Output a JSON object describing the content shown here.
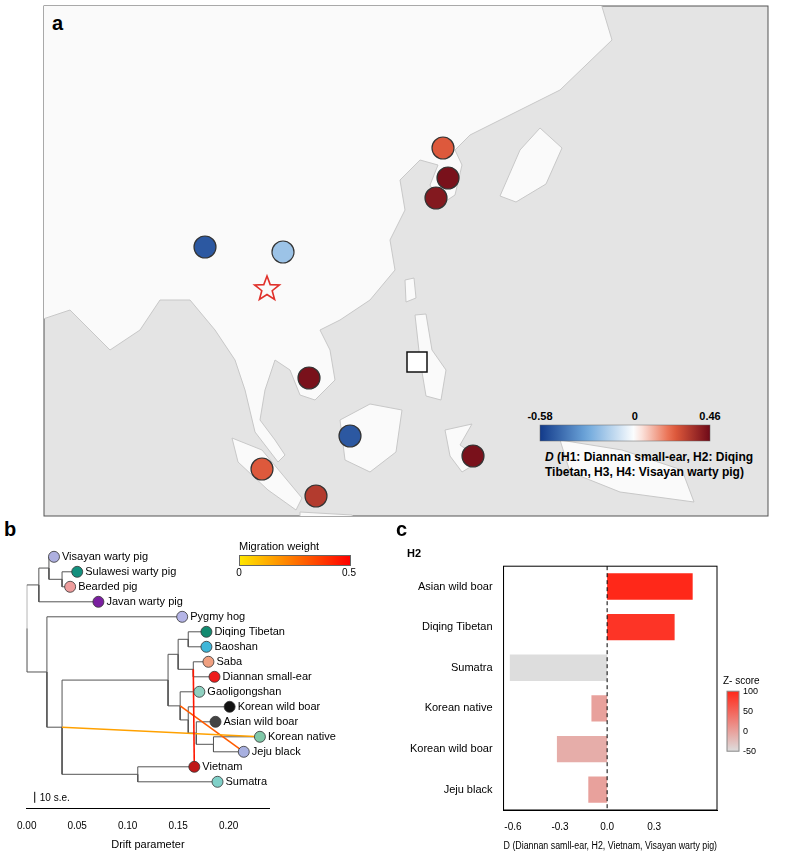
{
  "map": {
    "panel": "a",
    "type": "map",
    "D_values": [
      0.25,
      0.44,
      0.42,
      -0.5,
      -0.2,
      0.44,
      0.25,
      -0.5,
      0.33,
      0.44
    ],
    "colorbar": {
      "title": "D (H1: Diannan small-ear, H2: Diqing Tibetan, H3, H4: Visayan warty pig)",
      "range": [
        -0.58,
        0.46
      ],
      "ticks": [
        -0.58,
        0,
        0.46
      ]
    }
  },
  "chart_data": [
    {
      "panel": "b",
      "type": "tree",
      "x_label": "Drift parameter",
      "xlim": [
        0,
        0.24
      ],
      "xticks": [
        {
          "value": 0,
          "label": "0.00"
        },
        {
          "value": 0.05,
          "label": "0.05"
        },
        {
          "value": 0.1,
          "label": "0.10"
        },
        {
          "value": 0.15,
          "label": "0.15"
        },
        {
          "value": 0.2,
          "label": "0.20"
        }
      ],
      "nodes": [
        {
          "name": "Visayan warty pig",
          "color": "#aeb0e0",
          "drift": 0.027
        },
        {
          "name": "Sulawesi warty pig",
          "color": "#14907e",
          "drift": 0.05
        },
        {
          "name": "Bearded pig",
          "color": "#ee9d9d",
          "drift": 0.043
        },
        {
          "name": "Javan warty pig",
          "color": "#7a1fa0",
          "drift": 0.071
        },
        {
          "name": "Pygmy hog",
          "color": "#b4b4e6",
          "drift": 0.154
        },
        {
          "name": "Diqing Tibetan",
          "color": "#138a70",
          "drift": 0.178
        },
        {
          "name": "Baoshan",
          "color": "#3fb6d8",
          "drift": 0.178
        },
        {
          "name": "Saba",
          "color": "#f0a080",
          "drift": 0.18
        },
        {
          "name": "Diannan small-ear",
          "color": "#ee1c1c",
          "drift": 0.186
        },
        {
          "name": "Gaoligongshan",
          "color": "#8fd0c0",
          "drift": 0.171
        },
        {
          "name": "Korean wild boar",
          "color": "#111111",
          "drift": 0.201
        },
        {
          "name": "Asian wild boar",
          "color": "#444444",
          "drift": 0.187
        },
        {
          "name": "Korean native",
          "color": "#80c8a8",
          "drift": 0.231
        },
        {
          "name": "Jeju black",
          "color": "#a8b0e0",
          "drift": 0.215
        },
        {
          "name": "Vietnam",
          "color": "#c01818",
          "drift": 0.166
        },
        {
          "name": "Sumatra",
          "color": "#80d0c8",
          "drift": 0.189
        },
        {
          "drift": 0
        },
        {
          "drift": 0.012
        },
        {
          "drift": 0.022
        },
        {
          "drift": 0.035
        },
        {
          "drift": 0.02
        },
        {
          "drift": 0.035
        },
        {
          "drift": 0.14
        },
        {
          "drift": 0.11
        },
        {
          "drift": 0.15
        },
        {
          "drift": 0.152
        },
        {
          "drift": 0.16
        },
        {
          "drift": 0.165
        },
        {
          "drift": 0.16
        },
        {
          "drift": 0.168
        },
        {
          "drift": 0.185
        }
      ],
      "edges": [
        [
          16,
          17
        ],
        [
          16,
          20
        ],
        [
          17,
          18
        ],
        [
          17,
          3
        ],
        [
          18,
          0
        ],
        [
          18,
          19
        ],
        [
          19,
          1
        ],
        [
          19,
          2
        ],
        [
          20,
          4
        ],
        [
          20,
          21
        ],
        [
          21,
          22
        ],
        [
          21,
          23
        ],
        [
          23,
          14
        ],
        [
          23,
          15
        ],
        [
          22,
          24
        ],
        [
          22,
          25
        ],
        [
          24,
          26
        ],
        [
          24,
          27
        ],
        [
          26,
          5
        ],
        [
          26,
          6
        ],
        [
          27,
          7
        ],
        [
          27,
          8
        ],
        [
          25,
          9
        ],
        [
          25,
          28
        ],
        [
          28,
          10
        ],
        [
          28,
          29
        ],
        [
          29,
          11
        ],
        [
          29,
          30
        ],
        [
          30,
          12
        ],
        [
          30,
          13
        ]
      ],
      "migrations": [
        {
          "from": 14,
          "to": 27,
          "weight": 0.45
        },
        {
          "from": 21,
          "to": 12,
          "weight": 0.15
        },
        {
          "from": 25,
          "to": 13,
          "weight": 0.3
        }
      ],
      "migration_colorbar": {
        "title": "Migration weight",
        "range": [
          0,
          0.5
        ],
        "ticks": [
          0,
          0.5
        ]
      },
      "scale_label": "10 s.e."
    },
    {
      "panel": "c",
      "type": "bar",
      "orientation": "horizontal",
      "y_label": "H2",
      "x_label": "D (Diannan samll-ear, H2, Vietnam, Visayan warty pig)",
      "categories": [
        "Asian wild boar",
        "Diqing Tibetan",
        "Sumatra",
        "Korean native",
        "Korean wild boar",
        "Jeju black"
      ],
      "values": [
        0.545,
        0.43,
        -0.62,
        -0.1,
        -0.32,
        -0.12
      ],
      "z_scores": [
        100,
        90,
        -50,
        0,
        -10,
        0
      ],
      "xlim": [
        -0.66,
        0.7
      ],
      "xticks": [
        -0.6,
        -0.3,
        {
          "value": 0,
          "label": "0.0"
        },
        0.3
      ],
      "colorbar": {
        "title": "Z- score",
        "range": [
          -50,
          100
        ],
        "ticks": [
          100,
          50,
          0,
          -50
        ]
      },
      "grid": false
    }
  ]
}
